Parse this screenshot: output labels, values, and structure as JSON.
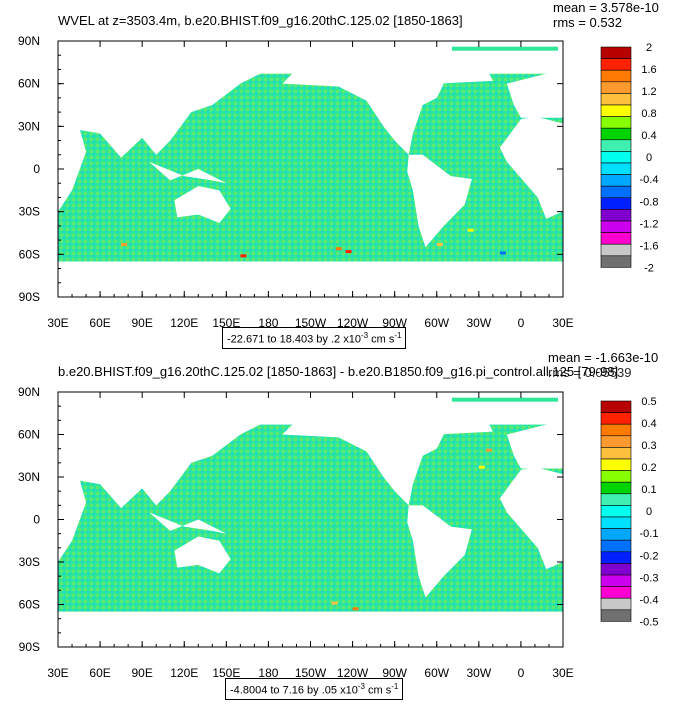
{
  "panels": [
    {
      "title": "WVEL at z=3503.4m, b.e20.BHIST.f09_g16.20thC.125.02 [1850-1863]",
      "stats": {
        "mean": "mean = 3.578e-10",
        "rms": "rms = 0.532"
      },
      "caption": {
        "text": "-22.671 to 18.403 by .2 x10",
        "exp": "-3",
        "unit": " cm s",
        "unit_exp": "-1"
      }
    },
    {
      "title": "b.e20.BHIST.f09_g16.20thC.125.02 [1850-1863] - b.e20.B1850.f09_g16.pi_control.all.125 [79-98]",
      "stats": {
        "mean": "mean = -1.663e-10",
        "rms": "rms = 0.05539"
      },
      "caption": {
        "text": "-4.8004 to 7.16 by .05 x10",
        "exp": "-3",
        "unit": " cm s",
        "unit_exp": "-1"
      }
    }
  ],
  "chart_data": [
    {
      "type": "heatmap",
      "title": "WVEL at z=3503.4m, b.e20.BHIST.f09_g16.20thC.125.02 [1850-1863]",
      "x_ticks": [
        "30E",
        "60E",
        "90E",
        "120E",
        "150E",
        "180",
        "150W",
        "120W",
        "90W",
        "60W",
        "30W",
        "0",
        "30E"
      ],
      "y_ticks": [
        "90N",
        "60N",
        "30N",
        "0",
        "30S",
        "60S",
        "90S"
      ],
      "xlim": [
        30,
        390
      ],
      "ylim": [
        -90,
        90
      ],
      "colorbar_levels": [
        "2",
        "1.6",
        "1.2",
        "0.8",
        "0.4",
        "0",
        "-0.4",
        "-0.8",
        "-1.2",
        "-1.6",
        "-2"
      ],
      "colorbar_colors": [
        "#b80000",
        "#ff2200",
        "#ff7a00",
        "#ff9a2e",
        "#ffc040",
        "#ffff00",
        "#88ff00",
        "#00d400",
        "#40f0b0",
        "#00ffee",
        "#00e0ff",
        "#00a8ff",
        "#0070ff",
        "#0020ff",
        "#8000d0",
        "#cc00ee",
        "#ff00d0",
        "#c8c8c8",
        "#707070"
      ],
      "stats": {
        "mean": "3.578e-10",
        "rms": "0.532"
      },
      "contour_range": "-22.671 to 18.403 by .2 x10-3 cm s-1"
    },
    {
      "type": "heatmap",
      "title": "b.e20.BHIST.f09_g16.20thC.125.02 [1850-1863] - b.e20.B1850.f09_g16.pi_control.all.125 [79-98]",
      "x_ticks": [
        "30E",
        "60E",
        "90E",
        "120E",
        "150E",
        "180",
        "150W",
        "120W",
        "90W",
        "60W",
        "30W",
        "0",
        "30E"
      ],
      "y_ticks": [
        "90N",
        "60N",
        "30N",
        "0",
        "30S",
        "60S",
        "90S"
      ],
      "xlim": [
        30,
        390
      ],
      "ylim": [
        -90,
        90
      ],
      "colorbar_levels": [
        "0.5",
        "0.4",
        "0.3",
        "0.2",
        "0.1",
        "0",
        "-0.1",
        "-0.2",
        "-0.3",
        "-0.4",
        "-0.5"
      ],
      "colorbar_colors": [
        "#b80000",
        "#ff2200",
        "#ff7a00",
        "#ff9a2e",
        "#ffc040",
        "#ffff00",
        "#88ff00",
        "#00d400",
        "#40f0b0",
        "#00ffee",
        "#00e0ff",
        "#00a8ff",
        "#0070ff",
        "#0020ff",
        "#8000d0",
        "#cc00ee",
        "#ff00d0",
        "#c8c8c8",
        "#707070"
      ],
      "stats": {
        "mean": "-1.663e-10",
        "rms": "0.05539"
      },
      "contour_range": "-4.8004 to 7.16 by .05 x10-3 cm s-1"
    }
  ]
}
